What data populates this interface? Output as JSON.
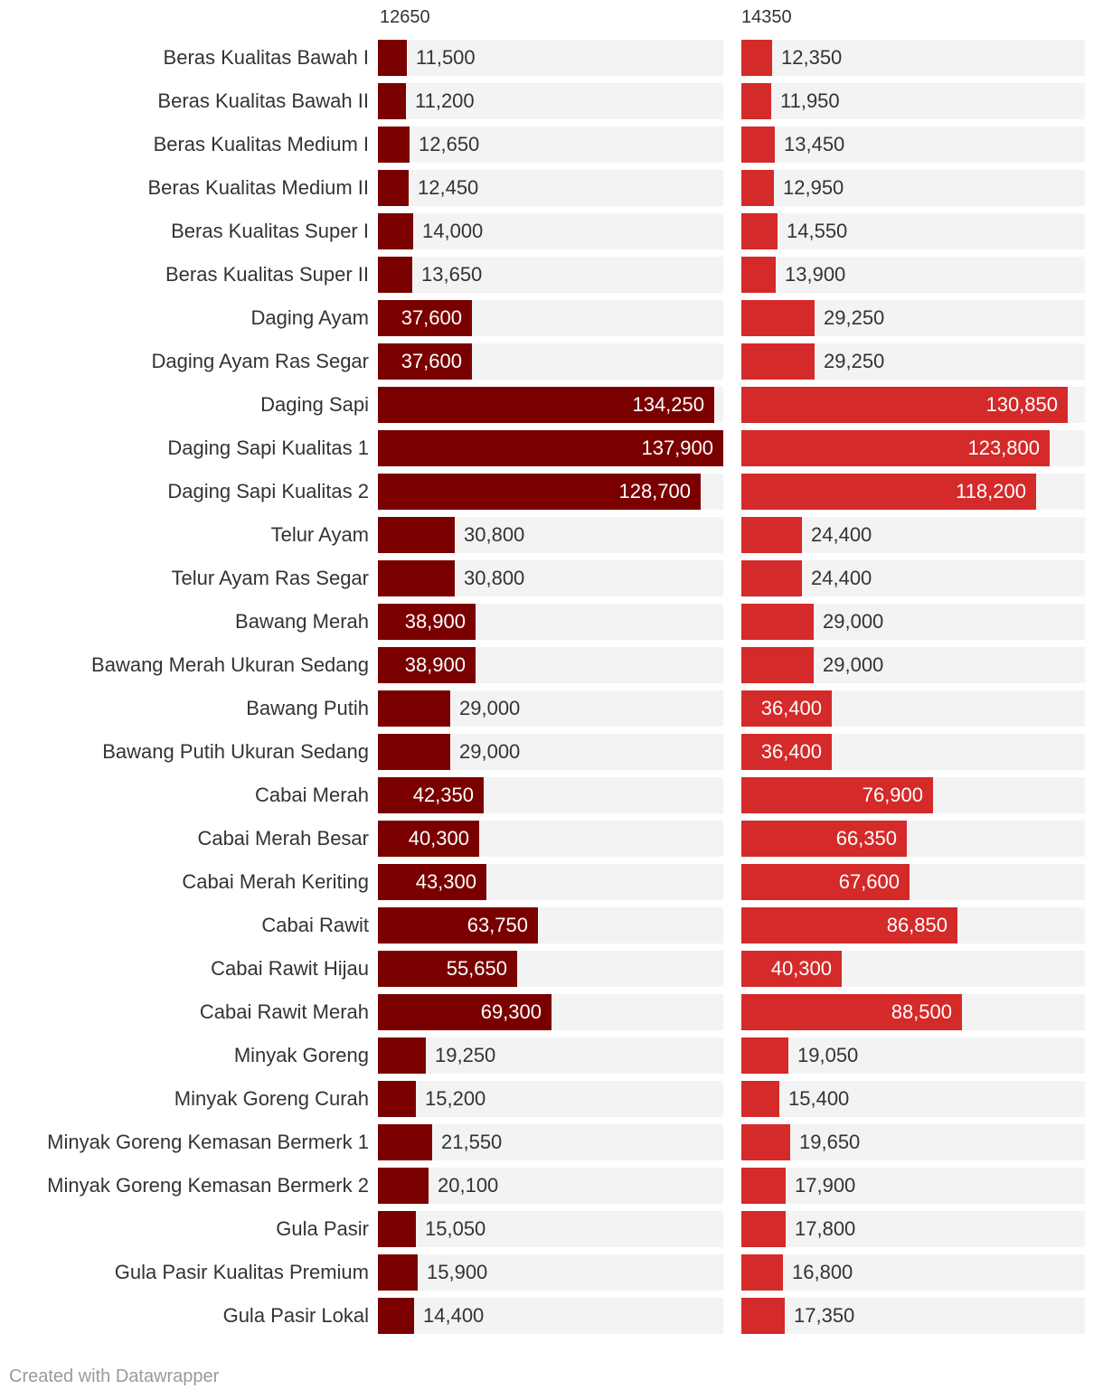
{
  "chart_data": {
    "type": "bar",
    "orientation": "horizontal",
    "categories": [
      "Beras Kualitas Bawah I",
      "Beras Kualitas Bawah II",
      "Beras Kualitas Medium I",
      "Beras Kualitas Medium II",
      "Beras Kualitas Super I",
      "Beras Kualitas Super II",
      "Daging Ayam",
      "Daging Ayam Ras Segar",
      "Daging Sapi",
      "Daging Sapi Kualitas 1",
      "Daging Sapi Kualitas 2",
      "Telur Ayam",
      "Telur Ayam Ras Segar",
      "Bawang Merah",
      "Bawang Merah Ukuran Sedang",
      "Bawang Putih",
      "Bawang Putih Ukuran Sedang",
      "Cabai Merah",
      "Cabai Merah Besar",
      "Cabai Merah Keriting",
      "Cabai Rawit",
      "Cabai Rawit Hijau",
      "Cabai Rawit Merah",
      "Minyak Goreng",
      "Minyak Goreng Curah",
      "Minyak Goreng Kemasan Bermerk 1",
      "Minyak Goreng Kemasan Bermerk 2",
      "Gula Pasir",
      "Gula Pasir Kualitas Premium",
      "Gula Pasir Lokal"
    ],
    "series": [
      {
        "name": "12650",
        "color": "#7a0000",
        "values": [
          11500,
          11200,
          12650,
          12450,
          14000,
          13650,
          37600,
          37600,
          134250,
          137900,
          128700,
          30800,
          30800,
          38900,
          38900,
          29000,
          29000,
          42350,
          40300,
          43300,
          63750,
          55650,
          69300,
          19250,
          15200,
          21550,
          20100,
          15050,
          15900,
          14400
        ]
      },
      {
        "name": "14350",
        "color": "#d42a2a",
        "values": [
          12350,
          11950,
          13450,
          12950,
          14550,
          13900,
          29250,
          29250,
          130850,
          123800,
          118200,
          24400,
          24400,
          29000,
          29000,
          36400,
          36400,
          76900,
          66350,
          67600,
          86850,
          40300,
          88500,
          19050,
          15400,
          19650,
          17900,
          17800,
          16800,
          17350
        ]
      }
    ],
    "xlim": [
      0,
      137900
    ],
    "background_color": "#f3f3f3"
  },
  "footer": "Created with Datawrapper"
}
